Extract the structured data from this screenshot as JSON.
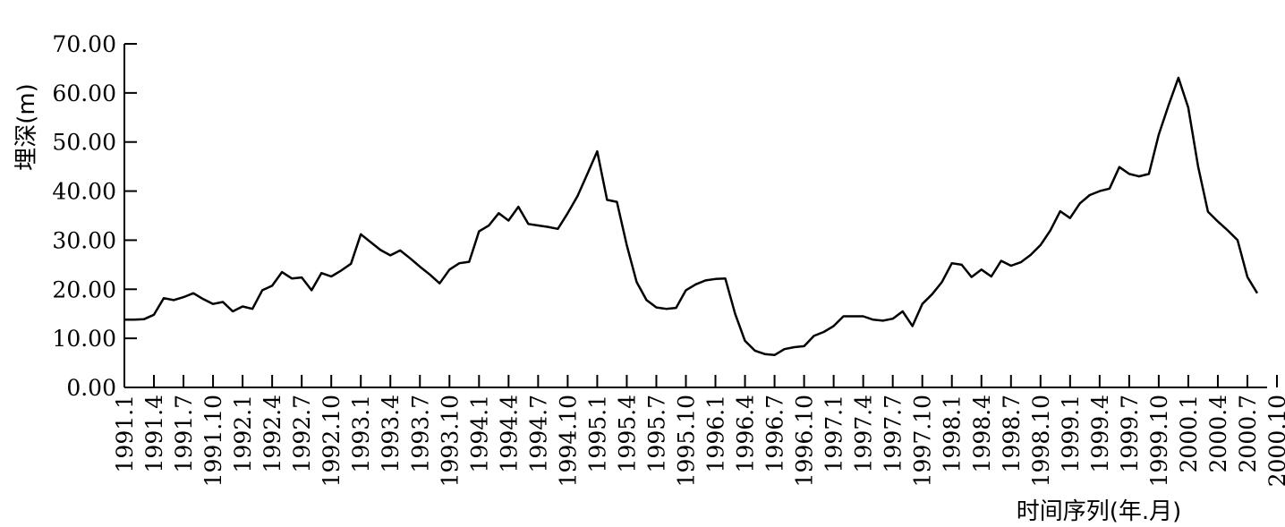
{
  "chart_data": {
    "type": "line",
    "ylabel": "埋深(m)",
    "xlabel": "时间序列(年.月)",
    "ylim": [
      0,
      70
    ],
    "y_ticks": [
      "0.00",
      "10.00",
      "20.00",
      "30.00",
      "40.00",
      "50.00",
      "60.00",
      "70.00"
    ],
    "x_tick_labels": [
      "1991.1",
      "1991.4",
      "1991.7",
      "1991.10",
      "1992.1",
      "1992.4",
      "1992.7",
      "1992.10",
      "1993.1",
      "1993.4",
      "1993.7",
      "1993.10",
      "1994.1",
      "1994.4",
      "1994.7",
      "1994.10",
      "1995.1",
      "1995.4",
      "1995.7",
      "1995.10",
      "1996.1",
      "1996.4",
      "1996.7",
      "1996.10",
      "1997.1",
      "1997.4",
      "1997.7",
      "1997.10",
      "1998.1",
      "1998.4",
      "1998.7",
      "1998.10",
      "1999.1",
      "1999.4",
      "1999.7",
      "1999.10",
      "2000.1",
      "2000.4",
      "2000.7",
      "2000.10"
    ],
    "grid": false,
    "legend": "none",
    "line_color": "#000000",
    "series": [
      {
        "values": [
          13.8,
          13.8,
          13.9,
          14.8,
          18.2,
          17.8,
          18.4,
          19.2,
          18.0,
          17.0,
          17.4,
          15.5,
          16.5,
          16.0,
          19.8,
          20.7,
          23.5,
          22.2,
          22.4,
          19.8,
          23.3,
          22.6,
          23.8,
          25.2,
          31.2,
          29.6,
          28.0,
          26.9,
          27.9,
          26.3,
          24.6,
          23.0,
          21.2,
          24.0,
          25.3,
          25.6,
          31.8,
          33.0,
          35.5,
          34.0,
          36.8,
          33.3,
          33.0,
          32.7,
          32.3,
          35.5,
          39.0,
          43.5,
          48.1,
          38.2,
          37.8,
          29.0,
          21.5,
          17.8,
          16.3,
          16.0,
          16.2,
          19.8,
          21.0,
          21.8,
          22.1,
          22.2,
          15.0,
          9.5,
          7.5,
          6.8,
          6.6,
          7.8,
          8.2,
          8.4,
          10.5,
          11.3,
          12.5,
          14.5,
          14.5,
          14.5,
          13.8,
          13.6,
          14.0,
          15.5,
          12.5,
          17.0,
          19.0,
          21.5,
          25.3,
          25.0,
          22.5,
          24.0,
          22.6,
          25.8,
          24.8,
          25.5,
          27.0,
          29.0,
          32.0,
          35.9,
          34.5,
          37.5,
          39.2,
          40.0,
          40.5,
          44.9,
          43.5,
          43.0,
          43.5,
          51.5,
          57.5,
          63.1,
          57.0,
          45.0,
          35.8,
          33.8,
          32.0,
          30.0,
          22.5,
          19.2
        ]
      }
    ]
  }
}
